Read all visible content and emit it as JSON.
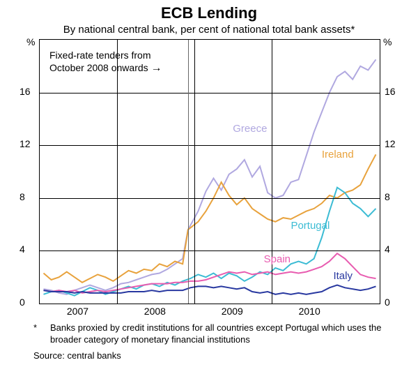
{
  "chart": {
    "type": "line",
    "title": "ECB Lending",
    "subtitle": "By national central bank, per cent of national total bank assets*",
    "title_fontsize": 22,
    "subtitle_fontsize": 15,
    "label_fontsize": 14,
    "background_color": "#ffffff",
    "grid_color": "#000000",
    "border_color": "#000000",
    "y_unit": "%",
    "ylim": [
      0,
      20
    ],
    "yticks": [
      0,
      4,
      8,
      12,
      16
    ],
    "xlim": [
      2006.5,
      2010.9
    ],
    "xticks": [
      2007,
      2008,
      2009,
      2010
    ],
    "xtick_labels": [
      "2007",
      "2008",
      "2009",
      "2010"
    ],
    "year_dividers": [
      2007.5,
      2008.5,
      2009.5
    ],
    "annotation": {
      "text_line1": "Fixed-rate tenders from",
      "text_line2": "October 2008 onwards",
      "arrow_glyph": "→",
      "vline_x": 2008.42,
      "vline_color": "#666666"
    },
    "series": [
      {
        "name": "Greece",
        "color": "#b0a8e0",
        "line_width": 2,
        "label_pos": {
          "x": 2009.0,
          "y": 13.3
        },
        "data": [
          [
            2006.55,
            1.1
          ],
          [
            2006.65,
            1.0
          ],
          [
            2006.75,
            0.8
          ],
          [
            2006.85,
            0.7
          ],
          [
            2006.95,
            1.0
          ],
          [
            2007.05,
            1.2
          ],
          [
            2007.15,
            1.4
          ],
          [
            2007.25,
            1.2
          ],
          [
            2007.35,
            1.0
          ],
          [
            2007.45,
            1.2
          ],
          [
            2007.55,
            1.5
          ],
          [
            2007.65,
            1.6
          ],
          [
            2007.75,
            1.8
          ],
          [
            2007.85,
            2.0
          ],
          [
            2007.95,
            2.2
          ],
          [
            2008.05,
            2.3
          ],
          [
            2008.15,
            2.6
          ],
          [
            2008.25,
            3.0
          ],
          [
            2008.35,
            3.4
          ],
          [
            2008.42,
            5.6
          ],
          [
            2008.55,
            7.0
          ],
          [
            2008.65,
            8.5
          ],
          [
            2008.75,
            9.5
          ],
          [
            2008.85,
            8.6
          ],
          [
            2008.95,
            9.8
          ],
          [
            2009.05,
            10.2
          ],
          [
            2009.15,
            10.9
          ],
          [
            2009.25,
            9.6
          ],
          [
            2009.35,
            10.4
          ],
          [
            2009.45,
            8.4
          ],
          [
            2009.55,
            8.0
          ],
          [
            2009.65,
            8.2
          ],
          [
            2009.75,
            9.2
          ],
          [
            2009.85,
            9.4
          ],
          [
            2009.95,
            11.2
          ],
          [
            2010.05,
            13.0
          ],
          [
            2010.15,
            14.5
          ],
          [
            2010.25,
            16.0
          ],
          [
            2010.35,
            17.2
          ],
          [
            2010.45,
            17.6
          ],
          [
            2010.55,
            17.0
          ],
          [
            2010.65,
            18.0
          ],
          [
            2010.75,
            17.7
          ],
          [
            2010.85,
            18.5
          ]
        ]
      },
      {
        "name": "Ireland",
        "color": "#e8a23c",
        "line_width": 2,
        "label_pos": {
          "x": 2010.15,
          "y": 11.3
        },
        "data": [
          [
            2006.55,
            2.3
          ],
          [
            2006.65,
            1.8
          ],
          [
            2006.75,
            2.0
          ],
          [
            2006.85,
            2.4
          ],
          [
            2006.95,
            2.0
          ],
          [
            2007.05,
            1.6
          ],
          [
            2007.15,
            1.9
          ],
          [
            2007.25,
            2.2
          ],
          [
            2007.35,
            2.0
          ],
          [
            2007.45,
            1.7
          ],
          [
            2007.55,
            2.1
          ],
          [
            2007.65,
            2.5
          ],
          [
            2007.75,
            2.3
          ],
          [
            2007.85,
            2.6
          ],
          [
            2007.95,
            2.5
          ],
          [
            2008.05,
            3.0
          ],
          [
            2008.15,
            2.8
          ],
          [
            2008.25,
            3.2
          ],
          [
            2008.35,
            3.0
          ],
          [
            2008.42,
            5.6
          ],
          [
            2008.55,
            6.2
          ],
          [
            2008.65,
            7.0
          ],
          [
            2008.75,
            8.0
          ],
          [
            2008.85,
            9.2
          ],
          [
            2008.95,
            8.2
          ],
          [
            2009.05,
            7.5
          ],
          [
            2009.15,
            8.0
          ],
          [
            2009.25,
            7.2
          ],
          [
            2009.35,
            6.8
          ],
          [
            2009.45,
            6.4
          ],
          [
            2009.55,
            6.2
          ],
          [
            2009.65,
            6.5
          ],
          [
            2009.75,
            6.4
          ],
          [
            2009.85,
            6.7
          ],
          [
            2009.95,
            7.0
          ],
          [
            2010.05,
            7.2
          ],
          [
            2010.15,
            7.6
          ],
          [
            2010.25,
            8.2
          ],
          [
            2010.35,
            8.0
          ],
          [
            2010.45,
            8.4
          ],
          [
            2010.55,
            8.6
          ],
          [
            2010.65,
            9.0
          ],
          [
            2010.75,
            10.2
          ],
          [
            2010.85,
            11.3
          ]
        ]
      },
      {
        "name": "Portugal",
        "color": "#3cbcd4",
        "line_width": 2,
        "label_pos": {
          "x": 2009.75,
          "y": 5.9
        },
        "data": [
          [
            2006.55,
            0.7
          ],
          [
            2006.65,
            0.9
          ],
          [
            2006.75,
            1.0
          ],
          [
            2006.85,
            0.8
          ],
          [
            2006.95,
            0.6
          ],
          [
            2007.05,
            0.9
          ],
          [
            2007.15,
            1.2
          ],
          [
            2007.25,
            1.0
          ],
          [
            2007.35,
            0.7
          ],
          [
            2007.45,
            0.9
          ],
          [
            2007.55,
            1.1
          ],
          [
            2007.65,
            1.3
          ],
          [
            2007.75,
            1.1
          ],
          [
            2007.85,
            1.4
          ],
          [
            2007.95,
            1.5
          ],
          [
            2008.05,
            1.3
          ],
          [
            2008.15,
            1.6
          ],
          [
            2008.25,
            1.4
          ],
          [
            2008.35,
            1.7
          ],
          [
            2008.45,
            1.9
          ],
          [
            2008.55,
            2.2
          ],
          [
            2008.65,
            2.0
          ],
          [
            2008.75,
            2.3
          ],
          [
            2008.85,
            1.9
          ],
          [
            2008.95,
            2.3
          ],
          [
            2009.05,
            2.1
          ],
          [
            2009.15,
            1.7
          ],
          [
            2009.25,
            2.0
          ],
          [
            2009.35,
            2.4
          ],
          [
            2009.45,
            2.2
          ],
          [
            2009.55,
            2.7
          ],
          [
            2009.65,
            2.5
          ],
          [
            2009.75,
            3.0
          ],
          [
            2009.85,
            3.2
          ],
          [
            2009.95,
            3.0
          ],
          [
            2010.05,
            3.4
          ],
          [
            2010.15,
            5.0
          ],
          [
            2010.25,
            7.0
          ],
          [
            2010.35,
            8.8
          ],
          [
            2010.45,
            8.4
          ],
          [
            2010.55,
            7.6
          ],
          [
            2010.65,
            7.2
          ],
          [
            2010.75,
            6.6
          ],
          [
            2010.85,
            7.2
          ]
        ]
      },
      {
        "name": "Spain",
        "color": "#e85cb0",
        "line_width": 2,
        "label_pos": {
          "x": 2009.4,
          "y": 3.4
        },
        "data": [
          [
            2006.55,
            1.0
          ],
          [
            2006.65,
            0.9
          ],
          [
            2006.75,
            1.0
          ],
          [
            2006.85,
            0.9
          ],
          [
            2006.95,
            1.0
          ],
          [
            2007.05,
            0.8
          ],
          [
            2007.15,
            0.9
          ],
          [
            2007.25,
            1.0
          ],
          [
            2007.35,
            0.9
          ],
          [
            2007.45,
            1.0
          ],
          [
            2007.55,
            1.1
          ],
          [
            2007.65,
            1.2
          ],
          [
            2007.75,
            1.3
          ],
          [
            2007.85,
            1.4
          ],
          [
            2007.95,
            1.5
          ],
          [
            2008.05,
            1.5
          ],
          [
            2008.15,
            1.5
          ],
          [
            2008.25,
            1.6
          ],
          [
            2008.35,
            1.6
          ],
          [
            2008.45,
            1.7
          ],
          [
            2008.55,
            1.7
          ],
          [
            2008.65,
            1.8
          ],
          [
            2008.75,
            2.0
          ],
          [
            2008.85,
            2.2
          ],
          [
            2008.95,
            2.4
          ],
          [
            2009.05,
            2.3
          ],
          [
            2009.15,
            2.4
          ],
          [
            2009.25,
            2.2
          ],
          [
            2009.35,
            2.3
          ],
          [
            2009.45,
            2.4
          ],
          [
            2009.55,
            2.2
          ],
          [
            2009.65,
            2.3
          ],
          [
            2009.75,
            2.4
          ],
          [
            2009.85,
            2.3
          ],
          [
            2009.95,
            2.4
          ],
          [
            2010.05,
            2.6
          ],
          [
            2010.15,
            2.8
          ],
          [
            2010.25,
            3.2
          ],
          [
            2010.35,
            3.8
          ],
          [
            2010.45,
            3.4
          ],
          [
            2010.55,
            2.8
          ],
          [
            2010.65,
            2.2
          ],
          [
            2010.75,
            2.0
          ],
          [
            2010.85,
            1.9
          ]
        ]
      },
      {
        "name": "Italy",
        "color": "#2838a0",
        "line_width": 2,
        "label_pos": {
          "x": 2010.3,
          "y": 2.1
        },
        "data": [
          [
            2006.55,
            1.0
          ],
          [
            2006.65,
            0.9
          ],
          [
            2006.75,
            0.9
          ],
          [
            2006.85,
            0.9
          ],
          [
            2006.95,
            0.8
          ],
          [
            2007.05,
            0.9
          ],
          [
            2007.15,
            0.8
          ],
          [
            2007.25,
            0.8
          ],
          [
            2007.35,
            0.8
          ],
          [
            2007.45,
            0.8
          ],
          [
            2007.55,
            0.8
          ],
          [
            2007.65,
            0.9
          ],
          [
            2007.75,
            0.9
          ],
          [
            2007.85,
            0.9
          ],
          [
            2007.95,
            1.0
          ],
          [
            2008.05,
            0.9
          ],
          [
            2008.15,
            1.0
          ],
          [
            2008.25,
            1.0
          ],
          [
            2008.35,
            1.0
          ],
          [
            2008.45,
            1.2
          ],
          [
            2008.55,
            1.3
          ],
          [
            2008.65,
            1.3
          ],
          [
            2008.75,
            1.2
          ],
          [
            2008.85,
            1.3
          ],
          [
            2008.95,
            1.2
          ],
          [
            2009.05,
            1.1
          ],
          [
            2009.15,
            1.2
          ],
          [
            2009.25,
            0.9
          ],
          [
            2009.35,
            0.8
          ],
          [
            2009.45,
            0.9
          ],
          [
            2009.55,
            0.7
          ],
          [
            2009.65,
            0.8
          ],
          [
            2009.75,
            0.7
          ],
          [
            2009.85,
            0.8
          ],
          [
            2009.95,
            0.7
          ],
          [
            2010.05,
            0.8
          ],
          [
            2010.15,
            0.9
          ],
          [
            2010.25,
            1.2
          ],
          [
            2010.35,
            1.4
          ],
          [
            2010.45,
            1.2
          ],
          [
            2010.55,
            1.1
          ],
          [
            2010.65,
            1.0
          ],
          [
            2010.75,
            1.1
          ],
          [
            2010.85,
            1.3
          ]
        ]
      }
    ],
    "footnote_marker": "*",
    "footnote": "Banks proxied by credit institutions for all countries except Portugal which uses the broader category of monetary financial institutions",
    "source_label": "Source:",
    "source": "central banks"
  }
}
